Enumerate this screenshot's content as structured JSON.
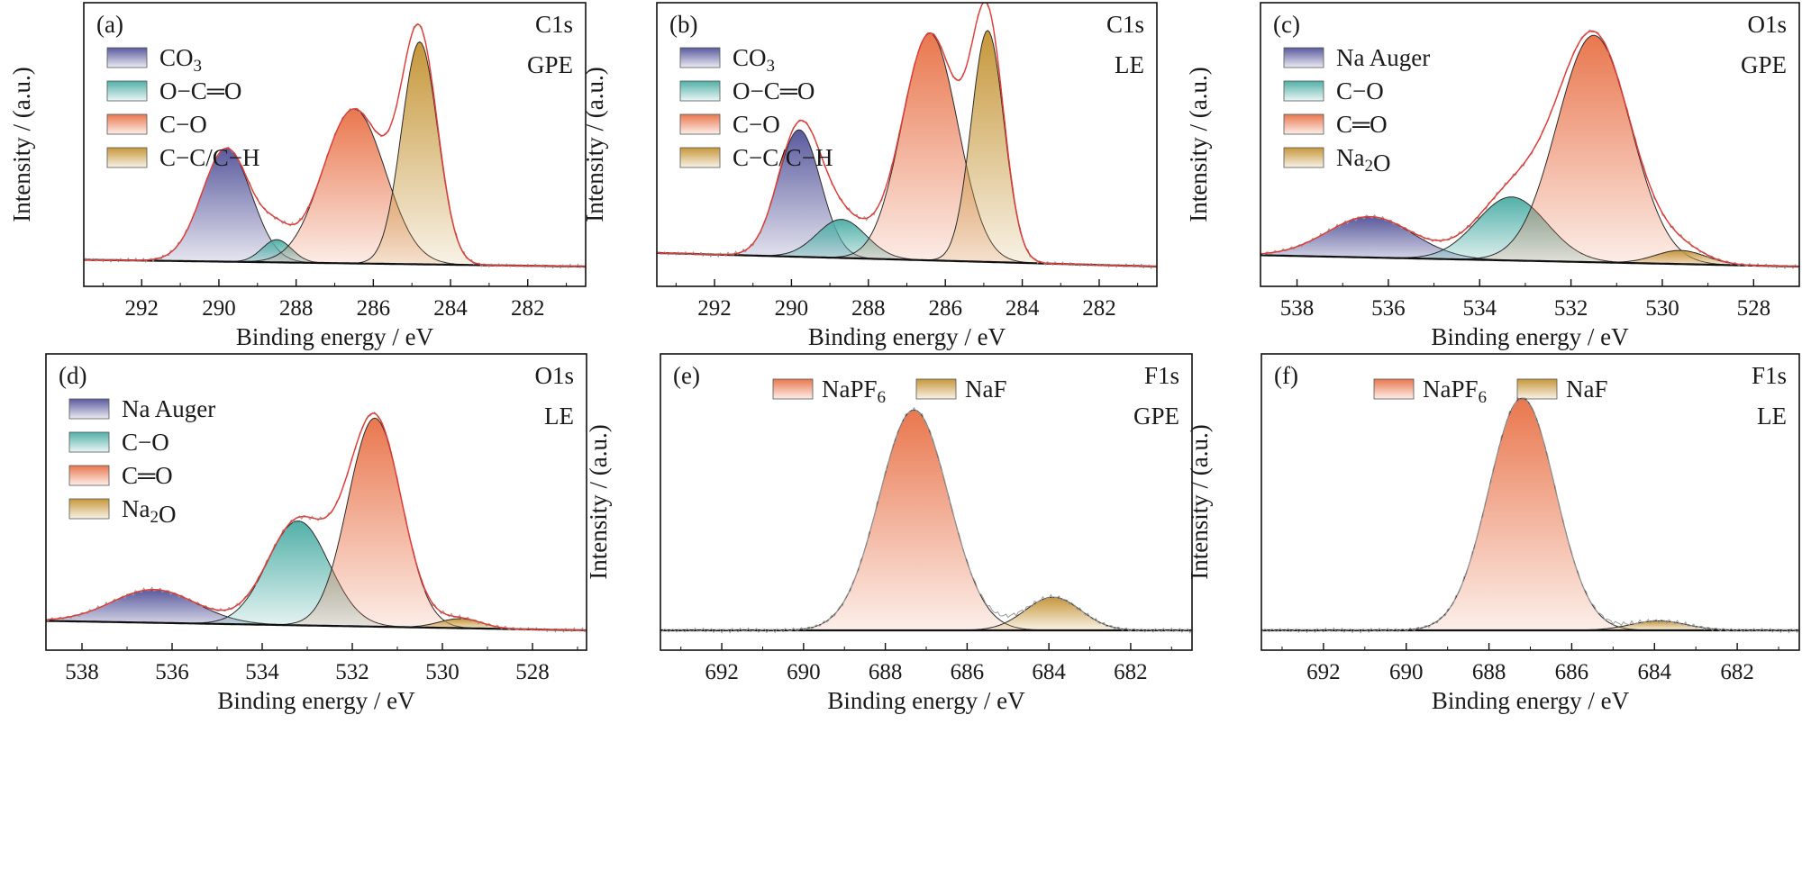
{
  "chart_data": [
    {
      "type": "area",
      "panel_label": "(a)",
      "annotation": [
        "C1s",
        "GPE"
      ],
      "xlabel": "Binding energy / eV",
      "ylabel": "Intensity / (a.u.)",
      "xlim": [
        293.5,
        280.5
      ],
      "x_reversed": true,
      "xticks": [
        292,
        290,
        288,
        286,
        284,
        282
      ],
      "y_ticks_shown": false,
      "legend_position": "top-left",
      "legend_layout": "vertical",
      "background": {
        "y_start": 0.03,
        "y_end": 0.0
      },
      "peak_envelope": true,
      "series": [
        {
          "name": "CO₃",
          "center": 289.8,
          "fwhm": 1.5,
          "height": 0.5,
          "color": "#5a5a9e"
        },
        {
          "name": "O−C═O",
          "center": 288.5,
          "fwhm": 0.9,
          "height": 0.1,
          "color": "#52b0a8"
        },
        {
          "name": "C−O",
          "center": 286.5,
          "fwhm": 1.9,
          "height": 0.68,
          "color": "#e9774e"
        },
        {
          "name": "C−C/C−H",
          "center": 284.8,
          "fwhm": 1.1,
          "height": 0.98,
          "color": "#c6973a"
        }
      ]
    },
    {
      "type": "area",
      "panel_label": "(b)",
      "annotation": [
        "C1s",
        "LE"
      ],
      "xlabel": "Binding energy / eV",
      "ylabel": "Intensity / (a.u.)",
      "xlim": [
        293.5,
        280.5
      ],
      "x_reversed": true,
      "xticks": [
        292,
        290,
        288,
        286,
        284,
        282
      ],
      "y_ticks_shown": false,
      "legend_position": "top-left",
      "legend_layout": "vertical",
      "background": {
        "y_start": 0.06,
        "y_end": 0.0
      },
      "peak_envelope": true,
      "series": [
        {
          "name": "CO₃",
          "center": 289.8,
          "fwhm": 1.3,
          "height": 0.56,
          "color": "#5a5a9e"
        },
        {
          "name": "O−C═O",
          "center": 288.7,
          "fwhm": 1.5,
          "height": 0.17,
          "color": "#52b0a8"
        },
        {
          "name": "C−O",
          "center": 286.4,
          "fwhm": 1.7,
          "height": 1.0,
          "color": "#e9774e"
        },
        {
          "name": "C−C/C−H",
          "center": 284.9,
          "fwhm": 1.0,
          "height": 1.02,
          "color": "#c6973a"
        }
      ]
    },
    {
      "type": "area",
      "panel_label": "(c)",
      "annotation": [
        "O1s",
        "GPE"
      ],
      "xlabel": "Binding energy / eV",
      "ylabel": "Intensity / (a.u.)",
      "xlim": [
        538.8,
        527.0
      ],
      "x_reversed": true,
      "xticks": [
        538,
        536,
        534,
        532,
        530,
        528
      ],
      "y_ticks_shown": false,
      "legend_position": "top-left",
      "legend_layout": "vertical",
      "background": {
        "y_start": 0.05,
        "y_end": 0.0
      },
      "peak_envelope": true,
      "series": [
        {
          "name": "Na Auger",
          "center": 536.4,
          "fwhm": 2.2,
          "height": 0.18,
          "color": "#5a5a9e"
        },
        {
          "name": "C−O",
          "center": 533.3,
          "fwhm": 1.8,
          "height": 0.28,
          "color": "#52b0a8"
        },
        {
          "name": "C═O",
          "center": 531.5,
          "fwhm": 1.9,
          "height": 1.0,
          "color": "#e9774e"
        },
        {
          "name": "Na₂O",
          "center": 529.6,
          "fwhm": 1.3,
          "height": 0.06,
          "color": "#c6973a"
        }
      ]
    },
    {
      "type": "area",
      "panel_label": "(d)",
      "annotation": [
        "O1s",
        "LE"
      ],
      "xlabel": "Binding energy / eV",
      "ylabel": "Intensity / (a.u.)",
      "xlim": [
        538.8,
        526.8
      ],
      "x_reversed": true,
      "xticks": [
        538,
        536,
        534,
        532,
        530,
        528
      ],
      "y_ticks_shown": false,
      "legend_position": "top-left",
      "legend_layout": "vertical",
      "background": {
        "y_start": 0.04,
        "y_end": 0.0
      },
      "peak_envelope": true,
      "series": [
        {
          "name": "Na Auger",
          "center": 536.4,
          "fwhm": 2.2,
          "height": 0.14,
          "color": "#5a5a9e"
        },
        {
          "name": "C−O",
          "center": 533.2,
          "fwhm": 1.6,
          "height": 0.44,
          "color": "#52b0a8"
        },
        {
          "name": "C═O",
          "center": 531.5,
          "fwhm": 1.4,
          "height": 0.88,
          "color": "#e9774e"
        },
        {
          "name": "Na₂O",
          "center": 529.6,
          "fwhm": 1.1,
          "height": 0.04,
          "color": "#c6973a"
        }
      ]
    },
    {
      "type": "area",
      "panel_label": "(e)",
      "annotation": [
        "F1s",
        "GPE"
      ],
      "xlabel": "Binding energy / eV",
      "ylabel": "Intensity / (a.u.)",
      "xlim": [
        693.5,
        680.5
      ],
      "x_reversed": true,
      "xticks": [
        692,
        690,
        688,
        686,
        684,
        682
      ],
      "y_ticks_shown": false,
      "legend_position": "top",
      "legend_layout": "horizontal",
      "background": {
        "y_start": 0.0,
        "y_end": 0.0
      },
      "peak_envelope": false,
      "series": [
        {
          "name": "NaPF₆",
          "center": 687.3,
          "fwhm": 2.0,
          "height": 0.93,
          "color": "#e9774e"
        },
        {
          "name": "NaF",
          "center": 683.9,
          "fwhm": 1.6,
          "height": 0.14,
          "color": "#c6973a"
        }
      ]
    },
    {
      "type": "area",
      "panel_label": "(f)",
      "annotation": [
        "F1s",
        "LE"
      ],
      "xlabel": "Binding energy / eV",
      "ylabel": "Intensity / (a.u.)",
      "xlim": [
        693.5,
        680.5
      ],
      "x_reversed": true,
      "xticks": [
        692,
        690,
        688,
        686,
        684,
        682
      ],
      "y_ticks_shown": false,
      "legend_position": "top",
      "legend_layout": "horizontal",
      "background": {
        "y_start": 0.0,
        "y_end": 0.0
      },
      "peak_envelope": false,
      "series": [
        {
          "name": "NaPF₆",
          "center": 687.2,
          "fwhm": 1.9,
          "height": 0.98,
          "color": "#e9774e"
        },
        {
          "name": "NaF",
          "center": 683.9,
          "fwhm": 1.6,
          "height": 0.04,
          "color": "#c6973a"
        }
      ]
    }
  ]
}
